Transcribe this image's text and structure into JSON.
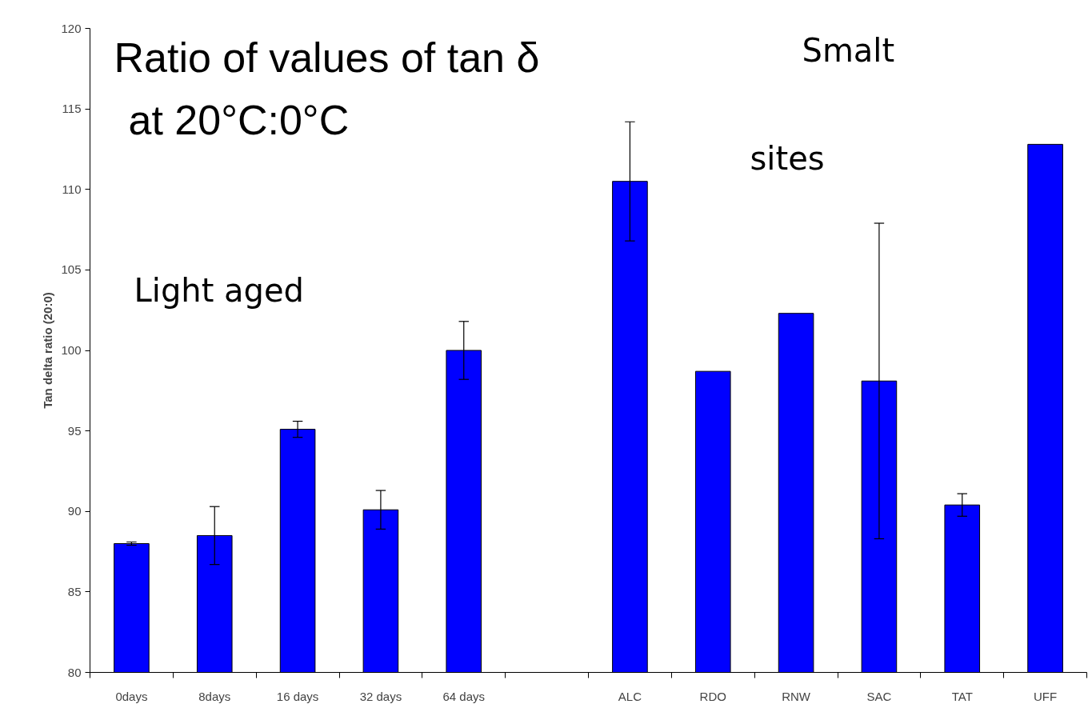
{
  "chart_data": {
    "type": "bar",
    "title": "Ratio of values of tan δ\nat 20°C:0°C",
    "ylabel": "Tan delta ratio (20:0)",
    "categories": [
      "0days",
      "8days",
      "16 days",
      "32 days",
      "64 days",
      null,
      "ALC",
      "RDO",
      "RNW",
      "SAC",
      "TAT",
      "UFF"
    ],
    "values": [
      88.0,
      88.5,
      95.1,
      90.1,
      100.0,
      null,
      110.5,
      98.7,
      102.3,
      98.1,
      90.4,
      112.8
    ],
    "errors": [
      0.1,
      1.8,
      0.5,
      1.2,
      1.8,
      null,
      3.7,
      null,
      null,
      9.8,
      0.7,
      null
    ],
    "color": "#0000ff",
    "ylim": [
      80,
      120
    ],
    "yticks": [
      80,
      85,
      90,
      95,
      100,
      105,
      110,
      115,
      120
    ],
    "annotations": [
      "Light aged",
      "Smalt",
      "sites"
    ],
    "grid": false
  }
}
